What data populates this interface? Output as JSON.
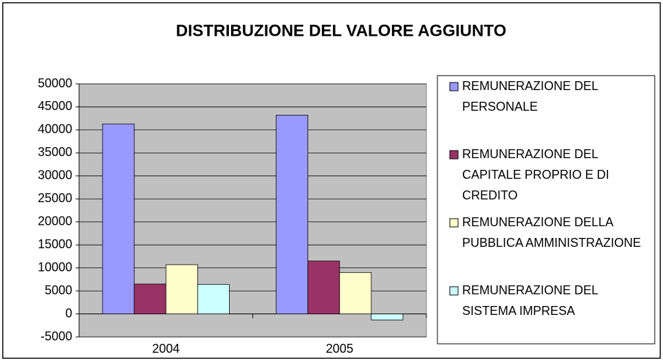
{
  "chart_data": {
    "type": "bar",
    "title": "DISTRIBUZIONE DEL VALORE AGGIUNTO",
    "categories": [
      "2004",
      "2005"
    ],
    "series": [
      {
        "name": "REMUNERAZIONE DEL PERSONALE",
        "color": "#9999ff",
        "values": [
          41300,
          43200
        ]
      },
      {
        "name": "REMUNERAZIONE DEL CAPITALE PROPRIO E DI CREDITO",
        "color": "#993366",
        "values": [
          6500,
          11500
        ]
      },
      {
        "name": "REMUNERAZIONE DELLA PUBBLICA AMMINISTRAZIONE",
        "color": "#ffffcc",
        "values": [
          10700,
          9000
        ]
      },
      {
        "name": "REMUNERAZIONE DEL SISTEMA IMPRESA",
        "color": "#ccffff",
        "values": [
          6400,
          -1300
        ]
      }
    ],
    "ylim": [
      -5000,
      50000
    ],
    "yticks": [
      -5000,
      0,
      5000,
      10000,
      15000,
      20000,
      25000,
      30000,
      35000,
      40000,
      45000,
      50000
    ],
    "grid": true,
    "legend": "right"
  }
}
